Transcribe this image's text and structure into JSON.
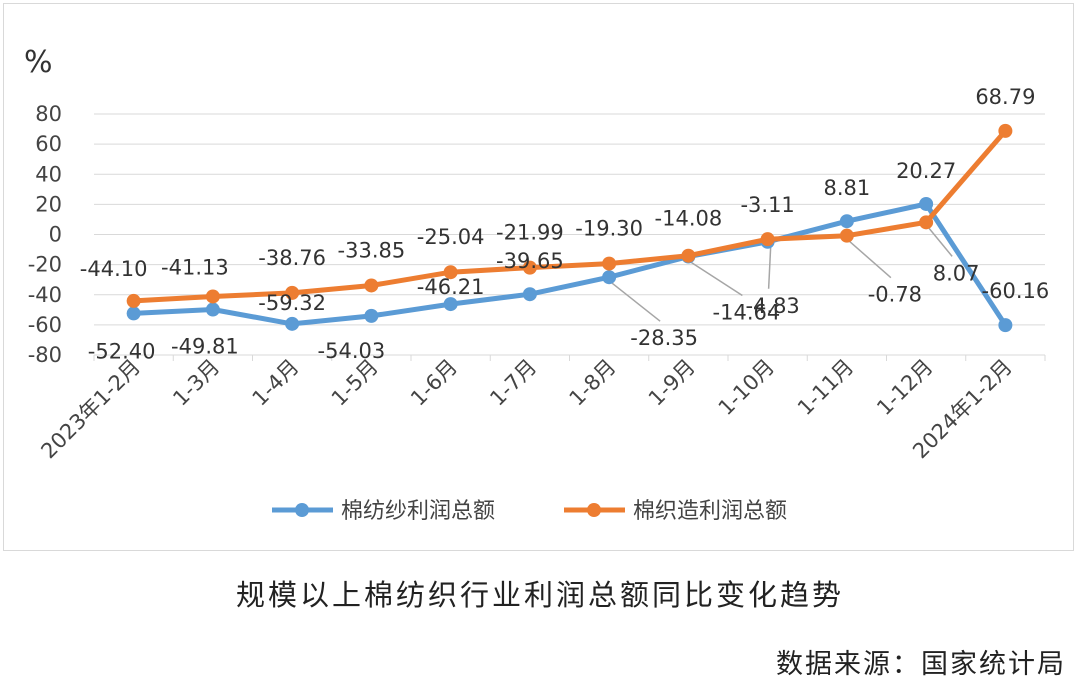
{
  "chart_data": {
    "type": "line",
    "title": "",
    "ylabel": "%",
    "xlabel": "",
    "ylim": [
      -80,
      80
    ],
    "yticks": [
      80,
      60,
      40,
      20,
      0,
      -20,
      -40,
      -60,
      -80
    ],
    "grid": true,
    "legend_position": "bottom",
    "categories": [
      "2023年1-2月",
      "1-3月",
      "1-4月",
      "1-5月",
      "1-6月",
      "1-7月",
      "1-8月",
      "1-9月",
      "1-10月",
      "1-11月",
      "1-12月",
      "2024年1-2月"
    ],
    "series": [
      {
        "name": "棉纺纱利润总额",
        "color": "#5b9bd5",
        "values": [
          -52.4,
          -49.81,
          -59.32,
          -54.03,
          -46.21,
          -39.65,
          -28.35,
          -14.64,
          -4.83,
          8.81,
          20.27,
          -60.16
        ],
        "labels": [
          "-52.40",
          "-49.81",
          "-59.32",
          "-54.03",
          "-46.21",
          "-39.65",
          "-28.35",
          "-14.64",
          "-4.83",
          "8.81",
          "20.27",
          "-60.16"
        ]
      },
      {
        "name": "棉织造利润总额",
        "color": "#ed7d31",
        "values": [
          -44.1,
          -41.13,
          -38.76,
          -33.85,
          -25.04,
          -21.99,
          -19.3,
          -14.08,
          -3.11,
          -0.78,
          8.07,
          68.79
        ],
        "labels": [
          "-44.10",
          "-41.13",
          "-38.76",
          "-33.85",
          "-25.04",
          "-21.99",
          "-19.30",
          "-14.08",
          "-3.11",
          "-0.78",
          "8.07",
          "68.79"
        ]
      }
    ]
  },
  "caption": "规模以上棉纺织行业利润总额同比变化趋势",
  "source": "数据来源：国家统计局"
}
